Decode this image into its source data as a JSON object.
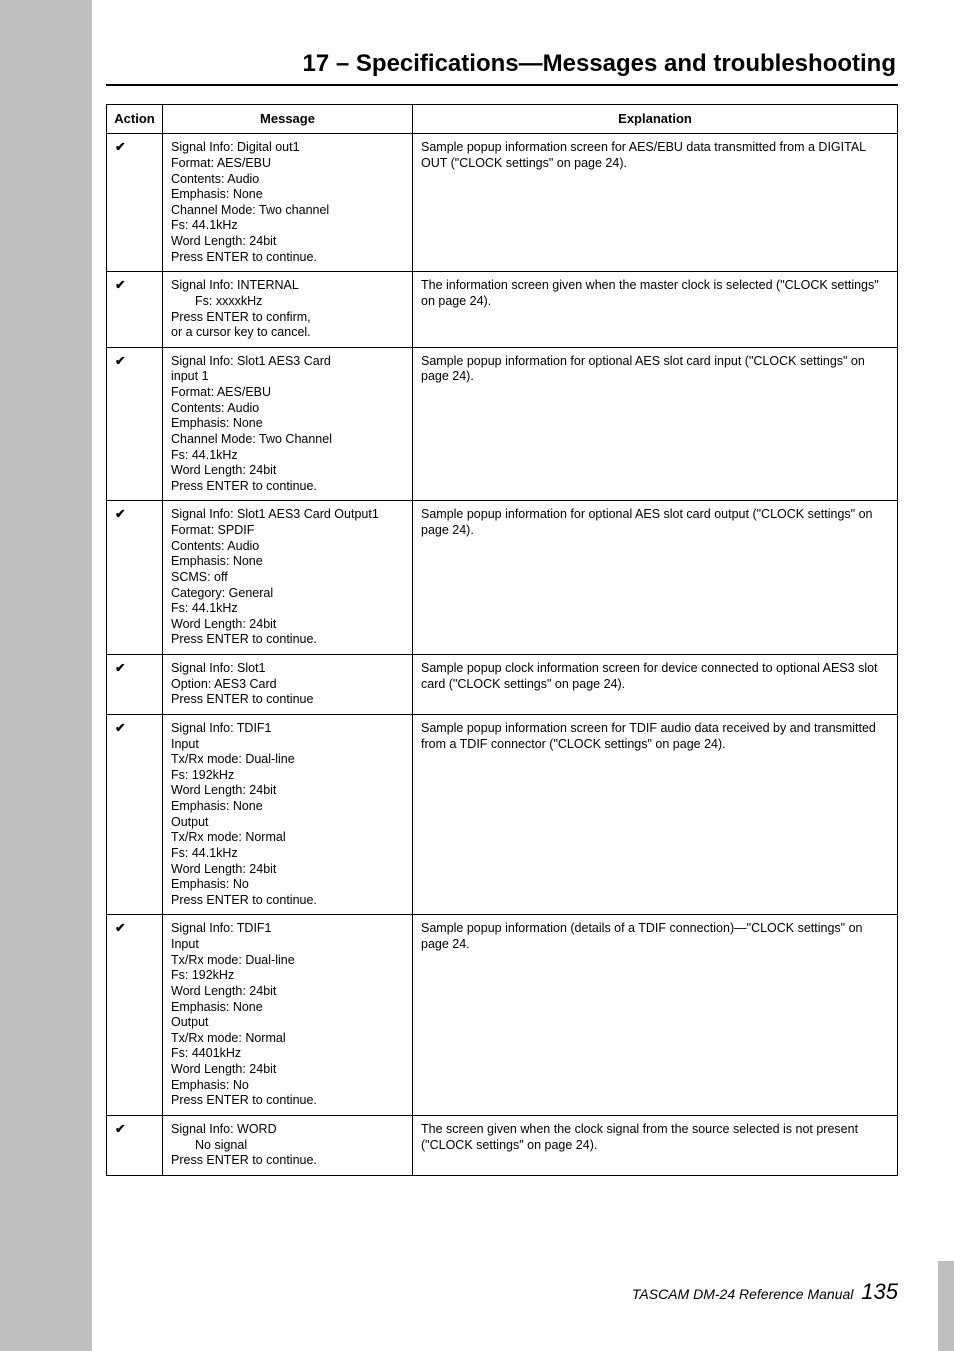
{
  "heading": "17 – Specifications—Messages and troubleshooting",
  "columns": {
    "action": "Action",
    "message": "Message",
    "explanation": "Explanation"
  },
  "rows": [
    {
      "action": "✔",
      "message": "Signal Info: Digital out1\nFormat: AES/EBU\nContents: Audio\nEmphasis: None\nChannel Mode: Two channel\nFs: 44.1kHz\nWord Length: 24bit\nPress ENTER to continue.",
      "explanation": "Sample popup information screen for AES/EBU data transmitted from a DIGITAL OUT (\"CLOCK settings\" on page 24)."
    },
    {
      "action": "✔",
      "message_html": "Signal Info: INTERNAL\n<span class=\"indent\">Fs: xxxxkHz</span>\nPress ENTER to confirm,\nor a cursor key to cancel.",
      "explanation": "The information screen given when the master clock is selected (\"CLOCK settings\" on page 24)."
    },
    {
      "action": "✔",
      "message": "Signal Info: Slot1 AES3 Card\ninput 1\nFormat: AES/EBU\nContents: Audio\nEmphasis: None\nChannel Mode: Two Channel\nFs: 44.1kHz\nWord Length: 24bit\nPress ENTER to continue.",
      "explanation": "Sample popup information for optional AES slot card input (\"CLOCK settings\" on page 24)."
    },
    {
      "action": "✔",
      "message": "Signal Info: Slot1 AES3 Card Output1\nFormat: SPDIF\nContents: Audio\nEmphasis: None\nSCMS: off\nCategory: General\nFs: 44.1kHz\nWord Length: 24bit\nPress ENTER to continue.",
      "explanation": "Sample popup information for optional AES slot card output (\"CLOCK settings\" on page 24)."
    },
    {
      "action": "✔",
      "message": "Signal Info: Slot1\nOption: AES3 Card\nPress ENTER to continue",
      "explanation": "Sample popup clock information screen for device connected to optional AES3 slot card (\"CLOCK settings\" on page 24)."
    },
    {
      "action": "✔",
      "message": "Signal Info: TDIF1\nInput\nTx/Rx mode: Dual-line\nFs: 192kHz\nWord Length: 24bit\nEmphasis: None\nOutput\nTx/Rx mode: Normal\nFs: 44.1kHz\nWord Length: 24bit\nEmphasis: No\nPress ENTER to continue.",
      "explanation": "Sample popup information screen for TDIF audio data received by and transmitted from a TDIF connector (\"CLOCK settings\" on page 24)."
    },
    {
      "action": "✔",
      "message": "Signal Info: TDIF1\nInput\nTx/Rx mode: Dual-line\nFs: 192kHz\nWord Length: 24bit\nEmphasis: None\nOutput\nTx/Rx mode: Normal\nFs: 4401kHz\nWord Length: 24bit\nEmphasis: No\nPress ENTER to continue.",
      "explanation": "Sample popup information (details of a TDIF connection)—\"CLOCK settings\" on page 24."
    },
    {
      "action": "✔",
      "message_html": "Signal Info: WORD\n<span class=\"indent\">No signal</span>\nPress ENTER to continue.",
      "explanation": "The screen given when the clock signal from the source selected is not present (\"CLOCK settings\" on page 24)."
    }
  ],
  "footer": {
    "text": "TASCAM DM-24 Reference Manual",
    "page": "135"
  }
}
